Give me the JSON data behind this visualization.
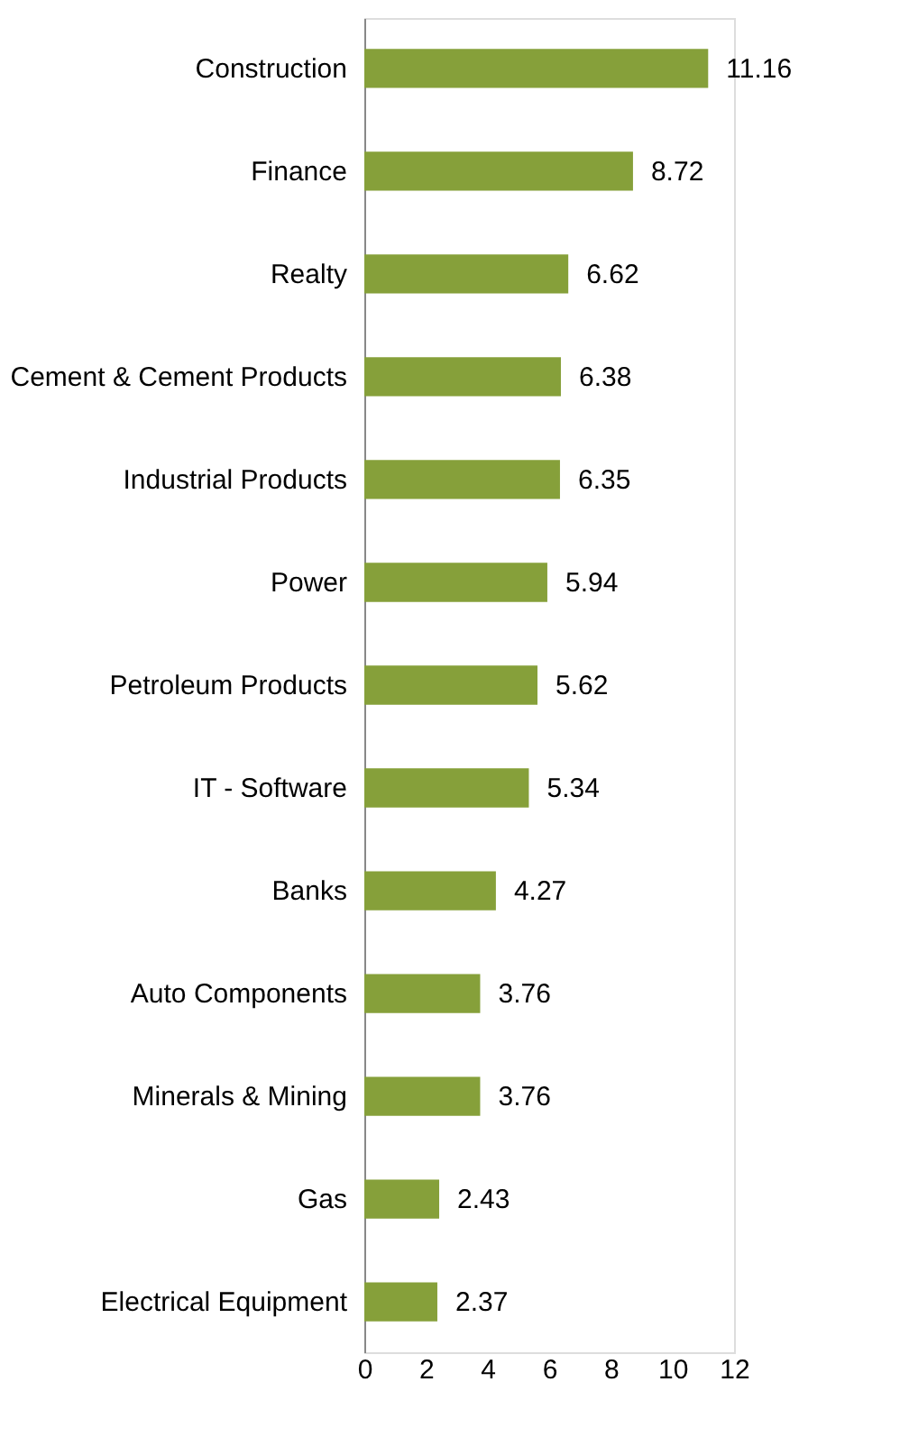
{
  "chart_data": {
    "type": "bar",
    "orientation": "horizontal",
    "categories": [
      "Construction",
      "Finance",
      "Realty",
      "Cement & Cement Products",
      "Industrial Products",
      "Power",
      "Petroleum Products",
      "IT - Software",
      "Banks",
      "Auto Components",
      "Minerals & Mining",
      "Gas",
      "Electrical Equipment"
    ],
    "values": [
      11.16,
      8.72,
      6.62,
      6.38,
      6.35,
      5.94,
      5.62,
      5.34,
      4.27,
      3.76,
      3.76,
      2.43,
      2.37
    ],
    "color": "#86a03a",
    "xlim": [
      0,
      12
    ],
    "xticks": [
      0,
      2,
      4,
      6,
      8,
      10,
      12
    ],
    "data_labels": true,
    "grid": false,
    "legend": false
  }
}
